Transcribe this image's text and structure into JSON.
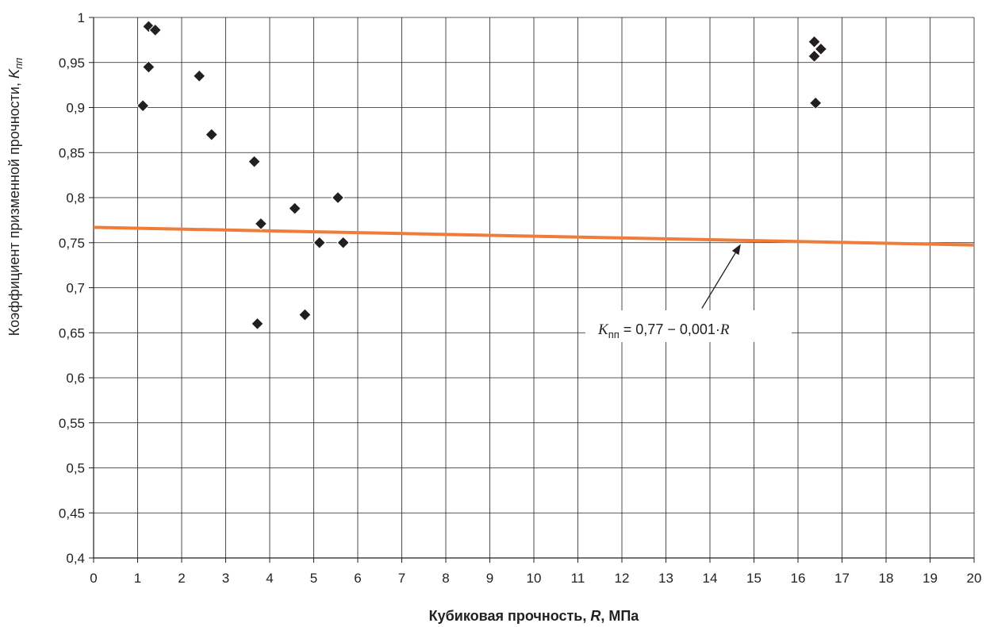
{
  "chart_data": {
    "type": "scatter",
    "xlabel": {
      "text": "Кубиковая прочность, ",
      "symbol": "R",
      "unit": ", МПа"
    },
    "ylabel": {
      "text": "Коэффициент призменной прочности, ",
      "symbol": "K",
      "subscript": "пп"
    },
    "xlim": [
      0,
      20
    ],
    "ylim": [
      0.4,
      1
    ],
    "x_ticks": [
      0,
      1,
      2,
      3,
      4,
      5,
      6,
      7,
      8,
      9,
      10,
      11,
      12,
      13,
      14,
      15,
      16,
      17,
      18,
      19,
      20
    ],
    "y_ticks": [
      0.4,
      0.45,
      0.5,
      0.55,
      0.6,
      0.65,
      0.7,
      0.75,
      0.8,
      0.85,
      0.9,
      0.95,
      1
    ],
    "y_tick_labels": [
      "0,4",
      "0,45",
      "0,5",
      "0,55",
      "0,6",
      "0,65",
      "0,7",
      "0,75",
      "0,8",
      "0,85",
      "0,9",
      "0,95",
      "1"
    ],
    "grid": true,
    "points": [
      {
        "x": 1.12,
        "y": 0.902
      },
      {
        "x": 1.25,
        "y": 0.945
      },
      {
        "x": 1.25,
        "y": 0.99
      },
      {
        "x": 1.4,
        "y": 0.986
      },
      {
        "x": 2.4,
        "y": 0.935
      },
      {
        "x": 2.68,
        "y": 0.87
      },
      {
        "x": 3.65,
        "y": 0.84
      },
      {
        "x": 3.72,
        "y": 0.66
      },
      {
        "x": 3.8,
        "y": 0.771
      },
      {
        "x": 4.57,
        "y": 0.788
      },
      {
        "x": 4.8,
        "y": 0.67
      },
      {
        "x": 5.13,
        "y": 0.75
      },
      {
        "x": 5.55,
        "y": 0.8
      },
      {
        "x": 5.67,
        "y": 0.75
      },
      {
        "x": 16.37,
        "y": 0.973
      },
      {
        "x": 16.37,
        "y": 0.957
      },
      {
        "x": 16.4,
        "y": 0.905
      },
      {
        "x": 16.52,
        "y": 0.965
      }
    ],
    "marker_color": "#231f20",
    "trend_line": {
      "intercept": 0.767,
      "slope": -0.00098,
      "x_range": [
        0,
        20
      ],
      "color": "#ef7d3a"
    },
    "annotation": {
      "symbol": "K",
      "subscript": "пп",
      "formula": " = 0,77 − 0,001·",
      "variable": "R",
      "points_to": {
        "x": 14.7,
        "y": 0.752
      }
    }
  }
}
